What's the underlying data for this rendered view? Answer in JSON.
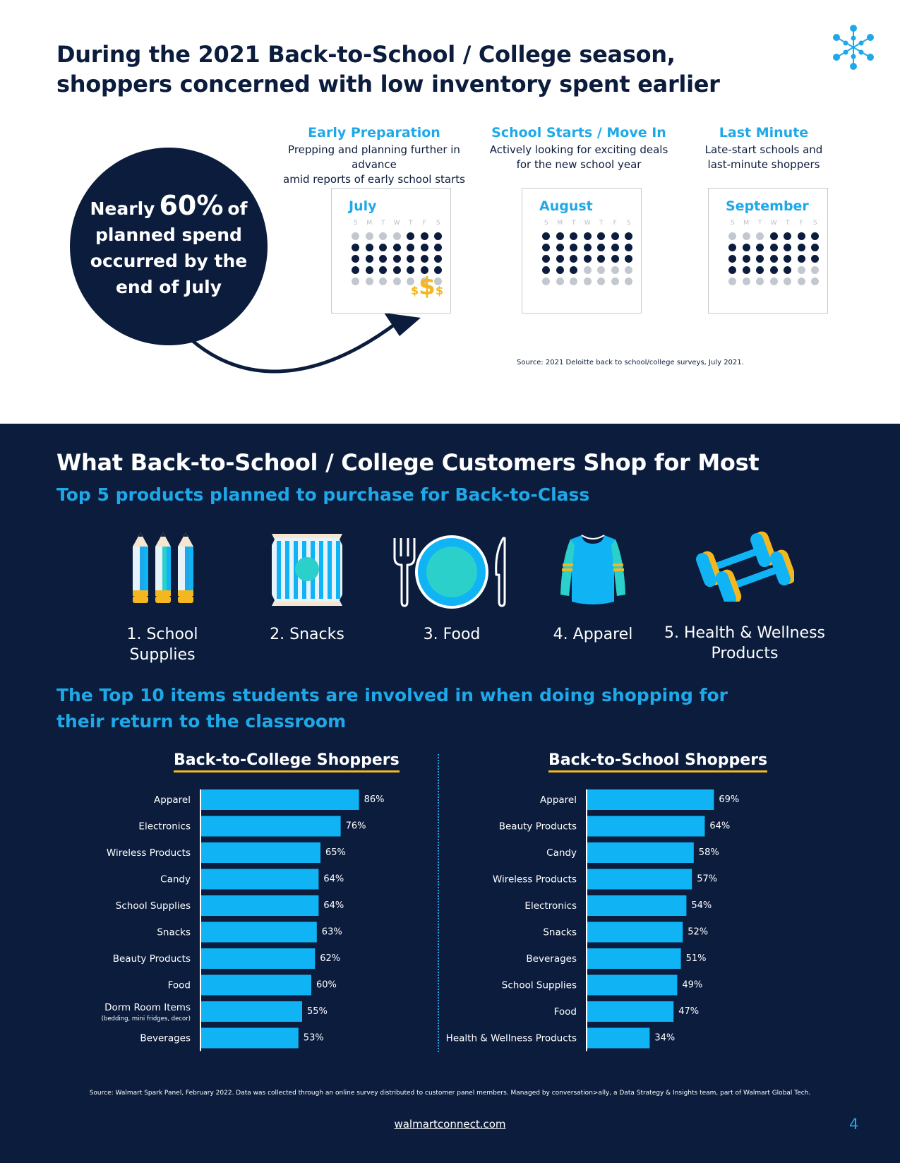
{
  "header": {
    "title": "During the 2021 Back-to-School / College season, shoppers concerned with low inventory spent earlier"
  },
  "circle": {
    "prefix": "Nearly",
    "percent": "60%",
    "of": "of",
    "line2": "planned spend",
    "line3": "occurred by the",
    "line4": "end of July"
  },
  "phases": [
    {
      "title": "Early Preparation",
      "desc1": "Prepping and planning further in advance",
      "desc2": "amid reports of early school starts"
    },
    {
      "title": "School Starts / Move In",
      "desc1": "Actively looking for exciting deals",
      "desc2": "for the new school year"
    },
    {
      "title": "Last Minute",
      "desc1": "Late-start schools and",
      "desc2": "last-minute shoppers"
    }
  ],
  "calendars": [
    {
      "month": "July",
      "days": [
        "S",
        "M",
        "T",
        "W",
        "T",
        "F",
        "S"
      ],
      "rows": [
        [
          0,
          0,
          0,
          0,
          1,
          1,
          1
        ],
        [
          1,
          1,
          1,
          1,
          1,
          1,
          1
        ],
        [
          1,
          1,
          1,
          1,
          1,
          1,
          1
        ],
        [
          1,
          1,
          1,
          1,
          1,
          1,
          1
        ],
        [
          0,
          0,
          0,
          0,
          0,
          0,
          0
        ]
      ]
    },
    {
      "month": "August",
      "days": [
        "S",
        "M",
        "T",
        "W",
        "T",
        "F",
        "S"
      ],
      "rows": [
        [
          1,
          1,
          1,
          1,
          1,
          1,
          1
        ],
        [
          1,
          1,
          1,
          1,
          1,
          1,
          1
        ],
        [
          1,
          1,
          1,
          1,
          1,
          1,
          1
        ],
        [
          1,
          1,
          1,
          0,
          0,
          0,
          0
        ],
        [
          0,
          0,
          0,
          0,
          0,
          0,
          0
        ]
      ]
    },
    {
      "month": "September",
      "days": [
        "S",
        "M",
        "T",
        "W",
        "T",
        "F",
        "S"
      ],
      "rows": [
        [
          0,
          0,
          0,
          1,
          1,
          1,
          1
        ],
        [
          1,
          1,
          1,
          1,
          1,
          1,
          1
        ],
        [
          1,
          1,
          1,
          1,
          1,
          1,
          1
        ],
        [
          1,
          1,
          1,
          1,
          1,
          0,
          0
        ],
        [
          0,
          0,
          0,
          0,
          0,
          0,
          0
        ]
      ]
    }
  ],
  "money": {
    "s1": "$",
    "s2": "$",
    "s3": "$"
  },
  "source1": "Source: 2021 Deloitte back to school/college surveys, July 2021.",
  "section": {
    "title": "What Back-to-School / College Customers Shop for Most",
    "subtitle": "Top 5 products planned to purchase for Back-to-Class"
  },
  "products": [
    {
      "label": "1. School Supplies",
      "icon": "pencils-icon"
    },
    {
      "label": "2. Snacks",
      "icon": "snack-bag-icon"
    },
    {
      "label": "3. Food",
      "icon": "plate-cutlery-icon"
    },
    {
      "label": "4. Apparel",
      "icon": "shirt-icon"
    },
    {
      "label": "5. Health & Wellness",
      "label2": "Products",
      "icon": "dumbbells-icon"
    }
  ],
  "top10_title": "The Top 10 items students are involved in when doing shopping for their return to the classroom",
  "chart_data": [
    {
      "type": "bar",
      "title": "Back-to-College Shoppers",
      "orientation": "horizontal",
      "categories": [
        "Apparel",
        "Electronics",
        "Wireless Products",
        "Candy",
        "School Supplies",
        "Snacks",
        "Beauty Products",
        "Food",
        "Dorm Room Items",
        "Beverages"
      ],
      "category_notes": [
        "",
        "",
        "",
        "",
        "",
        "",
        "",
        "",
        "(bedding, mini fridges, decor)",
        ""
      ],
      "values": [
        86,
        76,
        65,
        64,
        64,
        63,
        62,
        60,
        55,
        53
      ],
      "value_labels": [
        "86%",
        "76%",
        "65%",
        "64%",
        "64%",
        "63%",
        "62%",
        "60%",
        "55%",
        "53%"
      ],
      "bar_color": "#10b4f5"
    },
    {
      "type": "bar",
      "title": "Back-to-School Shoppers",
      "orientation": "horizontal",
      "categories": [
        "Apparel",
        "Beauty Products",
        "Candy",
        "Wireless Products",
        "Electronics",
        "Snacks",
        "Beverages",
        "School Supplies",
        "Food",
        "Health & Wellness Products"
      ],
      "category_notes": [
        "",
        "",
        "",
        "",
        "",
        "",
        "",
        "",
        "",
        ""
      ],
      "values": [
        69,
        64,
        58,
        57,
        54,
        52,
        51,
        49,
        47,
        34
      ],
      "value_labels": [
        "69%",
        "64%",
        "58%",
        "57%",
        "54%",
        "52%",
        "51%",
        "49%",
        "47%",
        "34%"
      ],
      "bar_color": "#10b4f5"
    }
  ],
  "source2": "Source: Walmart Spark Panel, February 2022. Data was collected through an online survey distributed to customer panel members. Managed by conversation>ally, a Data Strategy & Insights team, part of Walmart Global Tech.",
  "footer": {
    "link": "walmartconnect.com",
    "page": "4"
  },
  "colors": {
    "navy": "#0b1c3d",
    "blue": "#1fa8e8",
    "bar": "#10b4f5",
    "gold": "#f5b71f"
  }
}
